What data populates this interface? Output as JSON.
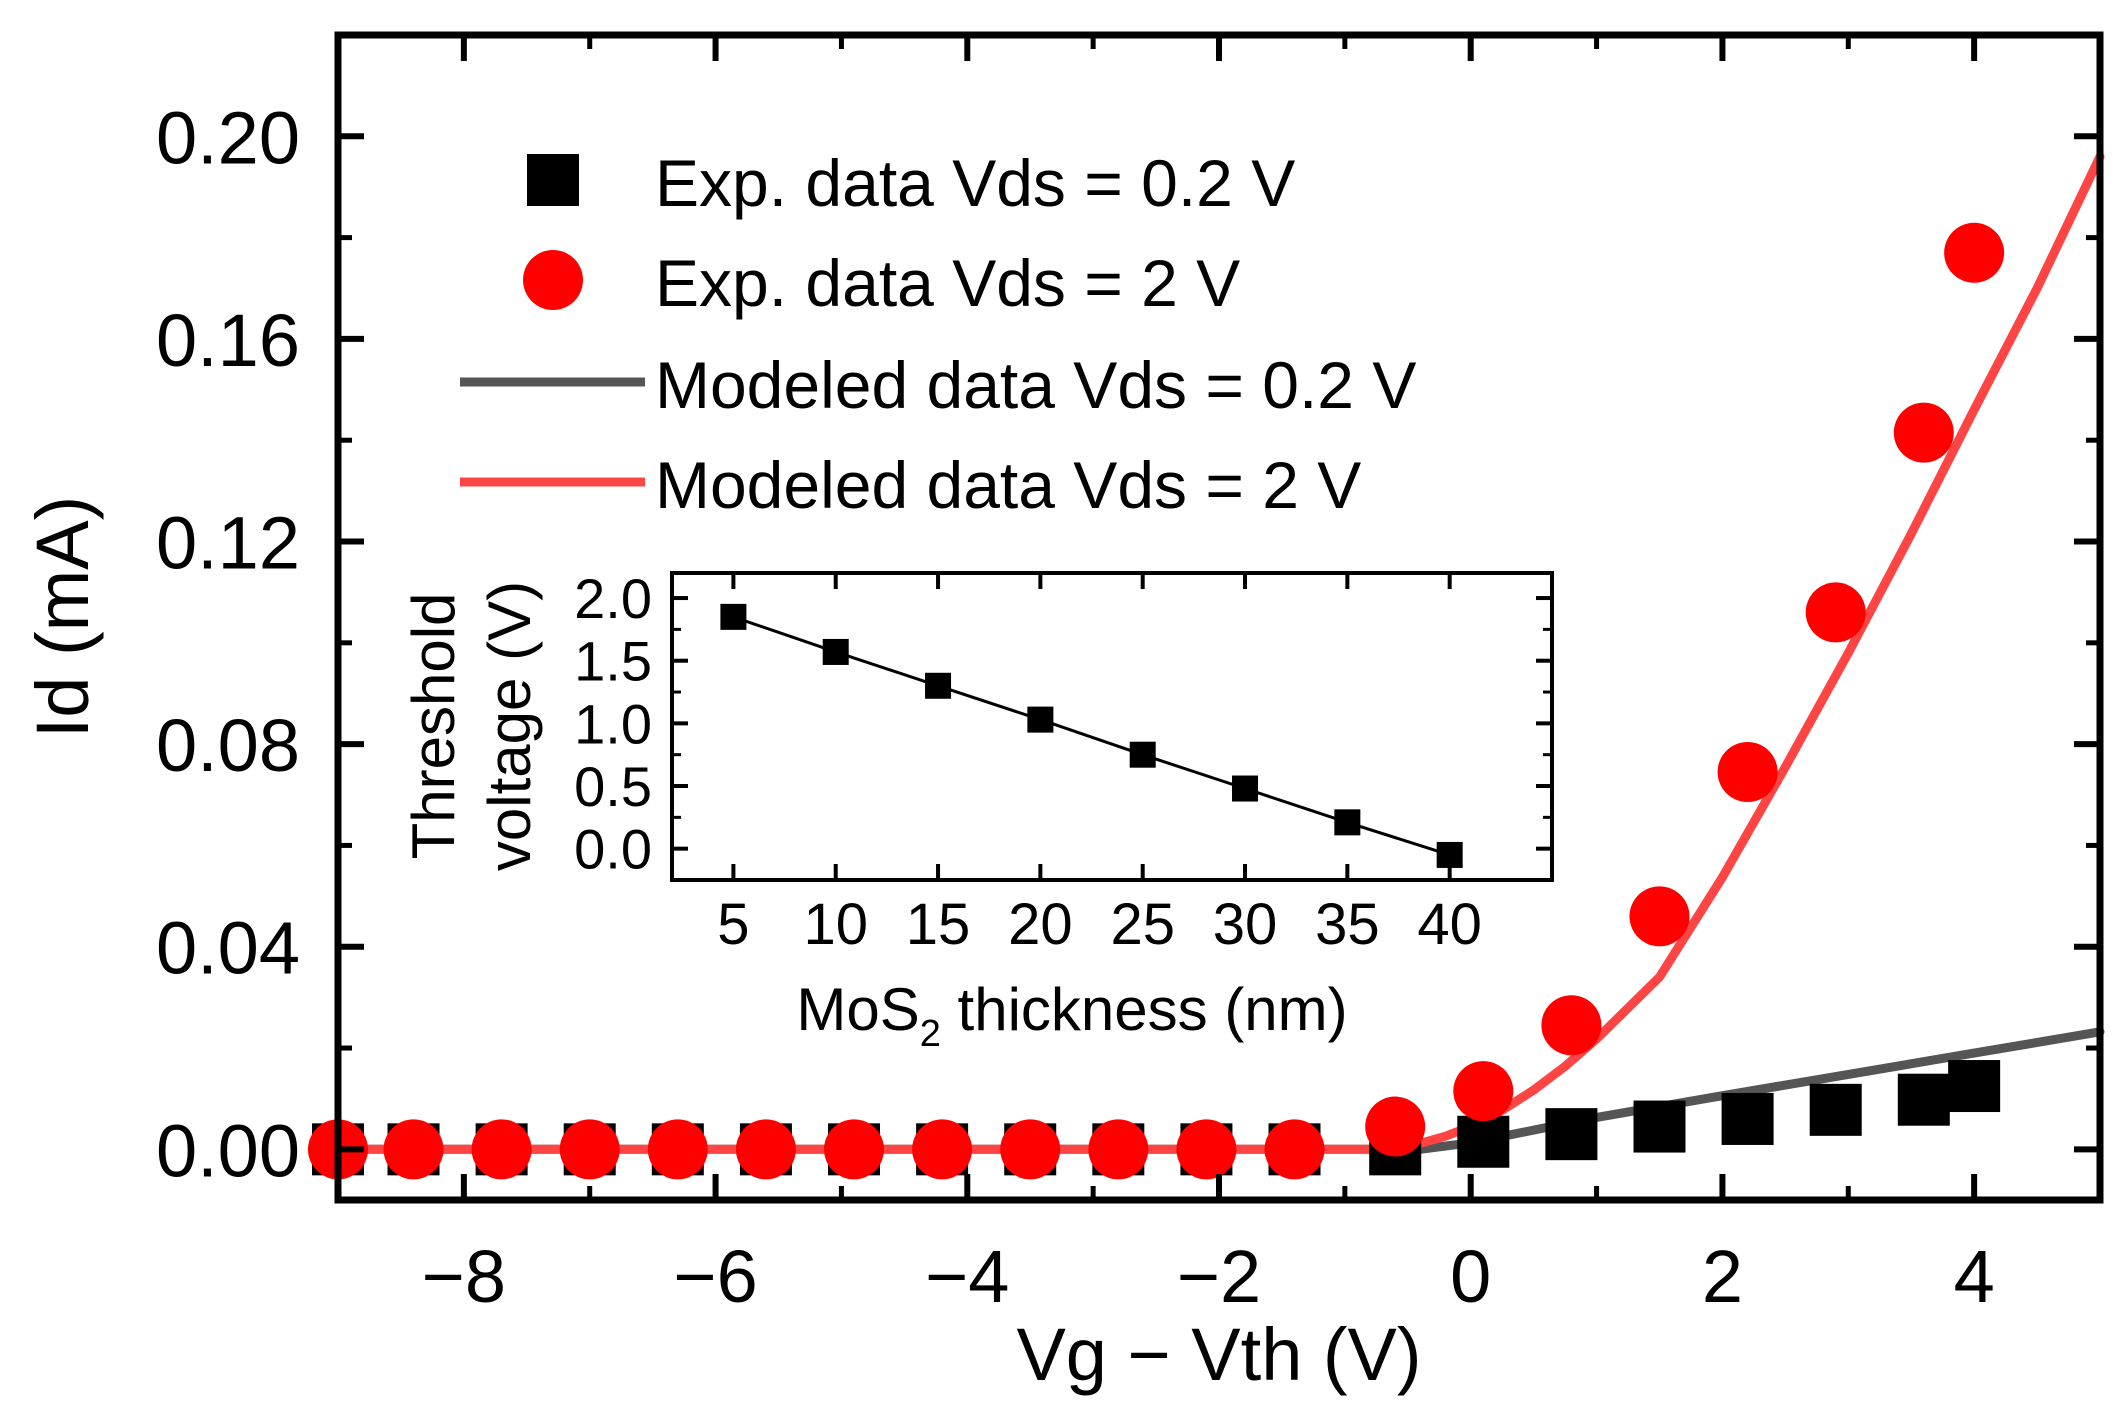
{
  "chart_data": [
    {
      "id": "main",
      "type": "scatter",
      "xlabel": "Vg − Vth (V)",
      "ylabel": "Id (mA)",
      "xlim": [
        -9,
        5
      ],
      "ylim": [
        -0.01,
        0.22
      ],
      "xticks": [
        -8,
        -6,
        -4,
        -2,
        0,
        2,
        4
      ],
      "xtick_labels": [
        "−8",
        "−6",
        "−4",
        "−2",
        "0",
        "2",
        "4"
      ],
      "yticks": [
        0.0,
        0.04,
        0.08,
        0.12,
        0.16,
        0.2
      ],
      "ytick_labels": [
        "0.00",
        "0.04",
        "0.08",
        "0.12",
        "0.16",
        "0.20"
      ],
      "grid": false,
      "legend_position": "top-left",
      "series": [
        {
          "name": "Exp. data Vds = 0.2 V",
          "kind": "markers",
          "marker": "square",
          "color": "#000000",
          "x": [
            -9.0,
            -8.4,
            -7.7,
            -7.0,
            -6.3,
            -5.6,
            -4.9,
            -4.2,
            -3.5,
            -2.8,
            -2.1,
            -1.4,
            -0.6,
            0.1,
            0.8,
            1.5,
            2.2,
            2.9,
            3.6,
            4.0
          ],
          "y": [
            0.0,
            0.0,
            0.0,
            0.0,
            0.0,
            0.0,
            0.0,
            0.0,
            0.0,
            0.0,
            0.0,
            0.0,
            0.0,
            0.0015,
            0.003,
            0.0045,
            0.006,
            0.0078,
            0.0098,
            0.0125
          ]
        },
        {
          "name": "Exp. data Vds = 2 V",
          "kind": "markers",
          "marker": "circle",
          "color": "#ff0000",
          "x": [
            -9.0,
            -8.4,
            -7.7,
            -7.0,
            -6.3,
            -5.6,
            -4.9,
            -4.2,
            -3.5,
            -2.8,
            -2.1,
            -1.4,
            -0.6,
            0.1,
            0.8,
            1.5,
            2.2,
            2.9,
            3.6,
            4.0
          ],
          "y": [
            0.0,
            0.0,
            0.0,
            0.0,
            0.0,
            0.0,
            0.0,
            0.0,
            0.0,
            0.0,
            0.0,
            0.0,
            0.0045,
            0.0115,
            0.0245,
            0.046,
            0.0745,
            0.106,
            0.1415,
            0.177
          ]
        },
        {
          "name": "Modeled data Vds = 0.2 V",
          "kind": "line",
          "color": "#555555",
          "x": [
            -9.0,
            -0.4,
            0.0,
            1.0,
            2.0,
            3.0,
            4.0,
            5.0
          ],
          "y": [
            0.0,
            0.0,
            0.0013,
            0.0063,
            0.0106,
            0.0148,
            0.019,
            0.0232
          ]
        },
        {
          "name": "Modeled data Vds = 2 V",
          "kind": "line",
          "color": "#ff4444",
          "x": [
            -9.0,
            -0.8,
            -0.6,
            -0.4,
            -0.2,
            0.0,
            0.25,
            0.5,
            0.75,
            1.0,
            1.5,
            2.0,
            2.5,
            3.0,
            3.5,
            4.0,
            4.5,
            5.0
          ],
          "y": [
            0.0,
            0.0,
            0.0003,
            0.0012,
            0.0026,
            0.0045,
            0.0077,
            0.0117,
            0.0164,
            0.0218,
            0.034,
            0.0537,
            0.0755,
            0.098,
            0.1215,
            0.146,
            0.17,
            0.196
          ]
        }
      ]
    },
    {
      "id": "inset",
      "type": "line",
      "xlabel_main": "MoS",
      "xlabel_sub": "2",
      "xlabel_rest": " thickness (nm)",
      "ylabel_line1": "Threshold",
      "ylabel_line2": "voltage (V)",
      "xlim": [
        2,
        45
      ],
      "ylim": [
        -0.25,
        2.2
      ],
      "xticks": [
        5,
        10,
        15,
        20,
        25,
        30,
        35,
        40
      ],
      "xtick_labels": [
        "5",
        "10",
        "15",
        "20",
        "25",
        "30",
        "35",
        "40"
      ],
      "yticks": [
        0.0,
        0.5,
        1.0,
        1.5,
        2.0
      ],
      "ytick_labels": [
        "0.0",
        "0.5",
        "1.0",
        "1.5",
        "2.0"
      ],
      "series": [
        {
          "name": "Threshold voltage",
          "marker": "square",
          "color": "#000000",
          "x": [
            5,
            10,
            15,
            20,
            25,
            30,
            35,
            40
          ],
          "y": [
            1.85,
            1.57,
            1.3,
            1.03,
            0.75,
            0.48,
            0.21,
            -0.05
          ]
        }
      ]
    }
  ],
  "legend": [
    {
      "label": "Exp. data Vds = 0.2 V",
      "symbol": "square",
      "color": "#000000"
    },
    {
      "label": "Exp. data Vds = 2 V",
      "symbol": "circle",
      "color": "#ff0000"
    },
    {
      "label": "Modeled data Vds = 0.2 V",
      "symbol": "line",
      "color": "#555555"
    },
    {
      "label": "Modeled data Vds = 2 V",
      "symbol": "line",
      "color": "#ff4444"
    }
  ]
}
